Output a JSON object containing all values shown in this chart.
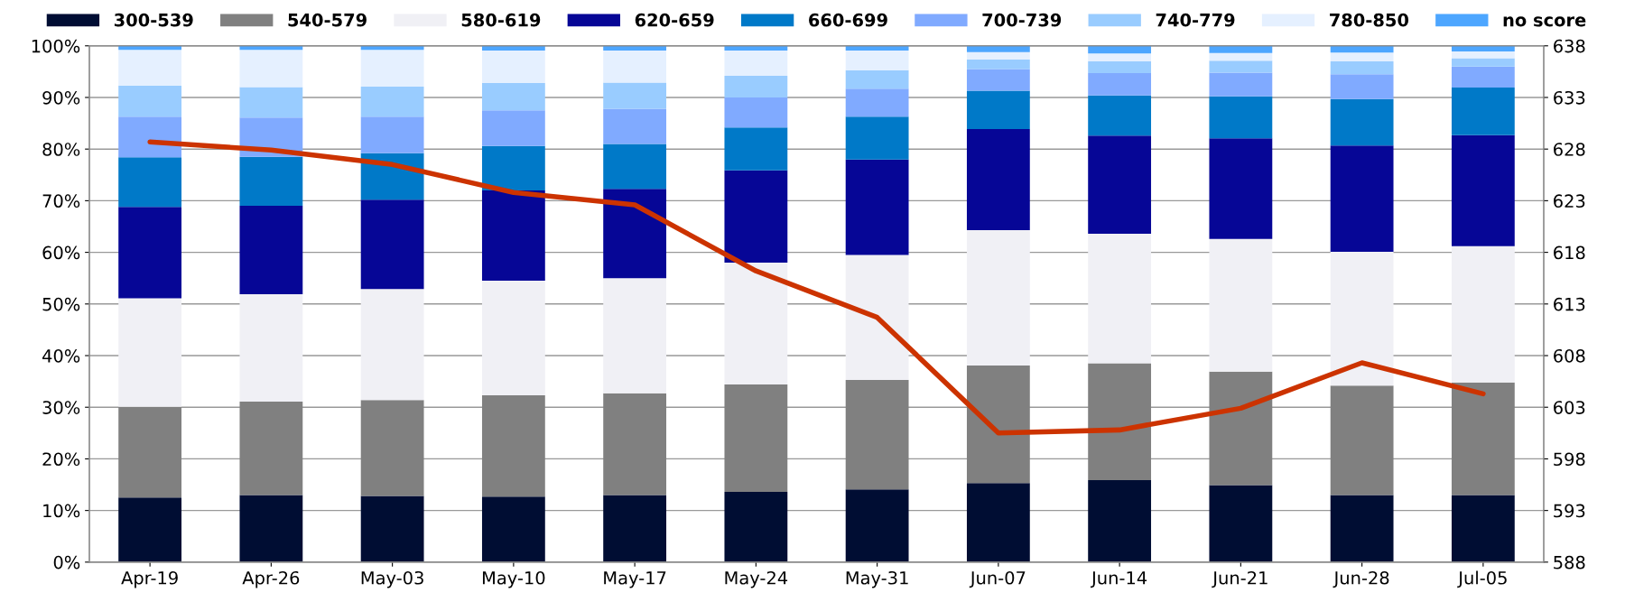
{
  "chart_data": {
    "type": "bar",
    "stacked": true,
    "categories": [
      "Apr-19",
      "Apr-26",
      "May-03",
      "May-10",
      "May-17",
      "May-24",
      "May-31",
      "Jun-07",
      "Jun-14",
      "Jun-21",
      "Jun-28",
      "Jul-05"
    ],
    "series": [
      {
        "name": "300-539",
        "color": "#000d33",
        "values": [
          12.5,
          13.0,
          12.8,
          12.7,
          13.0,
          13.6,
          14.1,
          15.3,
          15.9,
          14.9,
          13.0,
          13.0
        ]
      },
      {
        "name": "540-579",
        "color": "#808080",
        "values": [
          17.6,
          18.1,
          18.6,
          19.6,
          19.7,
          20.8,
          21.2,
          22.8,
          22.6,
          22.0,
          21.2,
          21.8
        ]
      },
      {
        "name": "580-619",
        "color": "#f0f0f5",
        "values": [
          21.0,
          20.8,
          21.5,
          22.2,
          22.3,
          23.6,
          24.2,
          26.2,
          25.1,
          25.7,
          25.9,
          26.4
        ]
      },
      {
        "name": "620-659",
        "color": "#060696",
        "values": [
          17.7,
          17.1,
          17.3,
          17.5,
          17.3,
          17.9,
          18.5,
          19.6,
          19.0,
          19.5,
          20.6,
          21.5
        ]
      },
      {
        "name": "660-699",
        "color": "#0079c8",
        "values": [
          9.6,
          9.5,
          9.0,
          8.6,
          8.7,
          8.3,
          8.3,
          7.4,
          7.8,
          8.1,
          9.0,
          9.2
        ]
      },
      {
        "name": "700-739",
        "color": "#80aaff",
        "values": [
          7.9,
          7.6,
          7.1,
          6.9,
          6.8,
          5.8,
          5.4,
          4.2,
          4.3,
          4.6,
          4.8,
          4.1
        ]
      },
      {
        "name": "740-779",
        "color": "#99ccff",
        "values": [
          6.0,
          5.9,
          5.8,
          5.3,
          5.1,
          4.2,
          3.6,
          1.9,
          2.3,
          2.3,
          2.5,
          1.6
        ]
      },
      {
        "name": "780-850",
        "color": "#e5f0ff",
        "values": [
          6.9,
          7.2,
          7.1,
          6.3,
          6.2,
          4.9,
          3.8,
          1.4,
          1.5,
          1.5,
          1.7,
          1.3
        ]
      },
      {
        "name": "no score",
        "color": "#4da6ff",
        "values": [
          0.8,
          0.8,
          0.8,
          0.9,
          0.9,
          0.9,
          0.9,
          1.2,
          1.5,
          1.4,
          1.3,
          1.1
        ]
      },
      {
        "type": "line",
        "axis": "y2",
        "color": "#cc3300",
        "values": [
          628.7,
          627.9,
          626.5,
          623.8,
          622.6,
          616.2,
          611.7,
          600.5,
          600.8,
          602.9,
          607.3,
          604.3
        ]
      }
    ],
    "ylim": [
      0,
      100
    ],
    "yticks": [
      {
        "value": 0,
        "label": "0%"
      },
      {
        "value": 10,
        "label": "10%"
      },
      {
        "value": 20,
        "label": "20%"
      },
      {
        "value": 30,
        "label": "30%"
      },
      {
        "value": 40,
        "label": "40%"
      },
      {
        "value": 50,
        "label": "50%"
      },
      {
        "value": 60,
        "label": "60%"
      },
      {
        "value": 70,
        "label": "70%"
      },
      {
        "value": 80,
        "label": "80%"
      },
      {
        "value": 90,
        "label": "90%"
      },
      {
        "value": 100,
        "label": "100%"
      }
    ],
    "y2lim": [
      588,
      638
    ],
    "y2ticks": [
      588,
      593,
      598,
      603,
      608,
      613,
      618,
      623,
      628,
      633,
      638
    ],
    "grid": "y",
    "legend": "top",
    "line_style": "solid",
    "marker": "none"
  }
}
